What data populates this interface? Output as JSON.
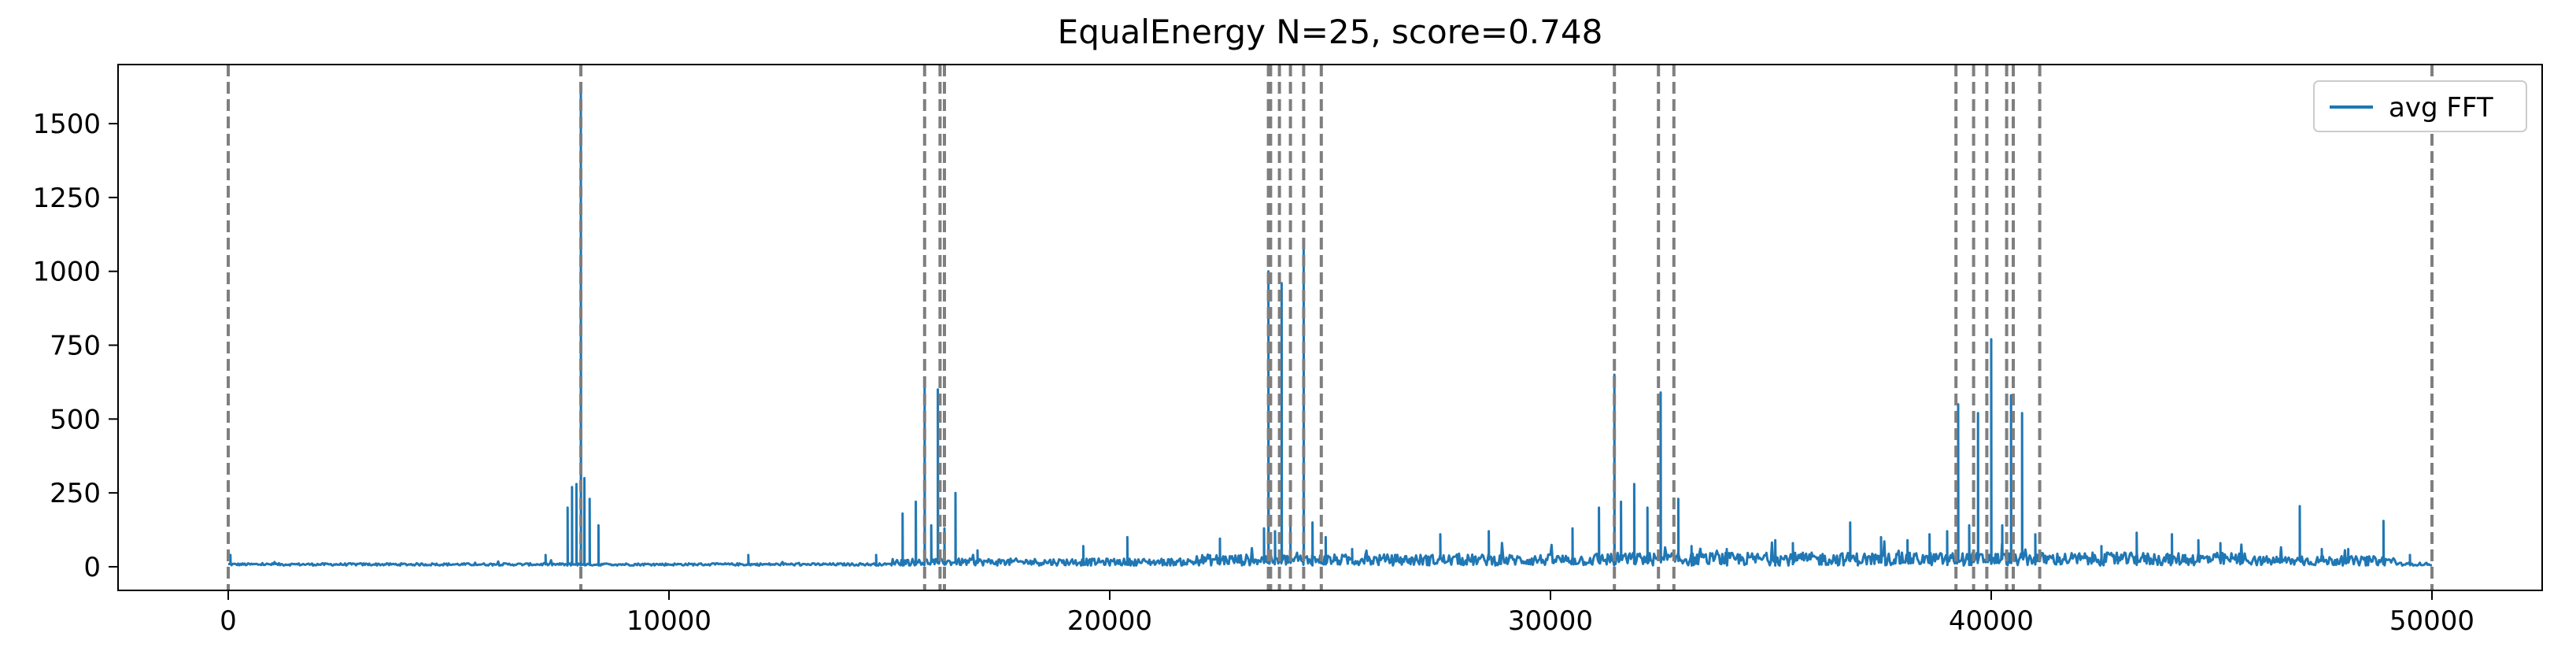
{
  "chart_data": {
    "type": "line",
    "title": "EqualEnergy N=25, score=0.748",
    "xlabel": "",
    "ylabel": "",
    "xlim": [
      -2500,
      52500
    ],
    "ylim": [
      -80,
      1700
    ],
    "x_ticks": [
      0,
      10000,
      20000,
      30000,
      40000,
      50000
    ],
    "y_ticks": [
      0,
      250,
      500,
      750,
      1000,
      1250,
      1500
    ],
    "legend_position": "top-right",
    "grid": false,
    "series": [
      {
        "name": "avg FFT",
        "color": "#1f77b4",
        "baseline": 4,
        "peaks": [
          [
            50,
            40
          ],
          [
            7200,
            40
          ],
          [
            7700,
            200
          ],
          [
            7800,
            270
          ],
          [
            7900,
            280
          ],
          [
            8000,
            1620
          ],
          [
            8080,
            300
          ],
          [
            8200,
            230
          ],
          [
            8400,
            140
          ],
          [
            11800,
            40
          ],
          [
            14700,
            40
          ],
          [
            15300,
            180
          ],
          [
            15600,
            220
          ],
          [
            15800,
            640
          ],
          [
            15950,
            140
          ],
          [
            16100,
            600
          ],
          [
            16250,
            130
          ],
          [
            16500,
            250
          ],
          [
            17000,
            55
          ],
          [
            19400,
            70
          ],
          [
            20400,
            100
          ],
          [
            22500,
            95
          ],
          [
            23500,
            130
          ],
          [
            23600,
            1000
          ],
          [
            23750,
            120
          ],
          [
            23900,
            960
          ],
          [
            24100,
            140
          ],
          [
            24400,
            1090
          ],
          [
            24600,
            150
          ],
          [
            24900,
            100
          ],
          [
            25500,
            60
          ],
          [
            27500,
            110
          ],
          [
            28600,
            120
          ],
          [
            30500,
            130
          ],
          [
            31100,
            200
          ],
          [
            31450,
            650
          ],
          [
            31600,
            220
          ],
          [
            31900,
            280
          ],
          [
            32200,
            200
          ],
          [
            32500,
            590
          ],
          [
            32900,
            230
          ],
          [
            33200,
            70
          ],
          [
            34000,
            60
          ],
          [
            35100,
            90
          ],
          [
            35500,
            80
          ],
          [
            36800,
            150
          ],
          [
            37500,
            100
          ],
          [
            38100,
            90
          ],
          [
            38600,
            110
          ],
          [
            39000,
            120
          ],
          [
            39250,
            550
          ],
          [
            39500,
            140
          ],
          [
            39700,
            520
          ],
          [
            40000,
            770
          ],
          [
            40250,
            140
          ],
          [
            40450,
            580
          ],
          [
            40700,
            520
          ],
          [
            41000,
            110
          ],
          [
            42500,
            70
          ],
          [
            43300,
            115
          ],
          [
            44100,
            110
          ],
          [
            44700,
            90
          ],
          [
            45200,
            80
          ],
          [
            47000,
            205
          ],
          [
            47500,
            60
          ],
          [
            48100,
            60
          ],
          [
            48900,
            155
          ],
          [
            49500,
            40
          ]
        ]
      }
    ],
    "boundary_lines": [
      0,
      8000,
      15800,
      16150,
      16250,
      23600,
      23650,
      23850,
      24100,
      24400,
      24800,
      31450,
      32450,
      32800,
      39200,
      39600,
      39900,
      40350,
      40500,
      41100,
      50000
    ],
    "boundary_color": "#7f7f7f"
  }
}
